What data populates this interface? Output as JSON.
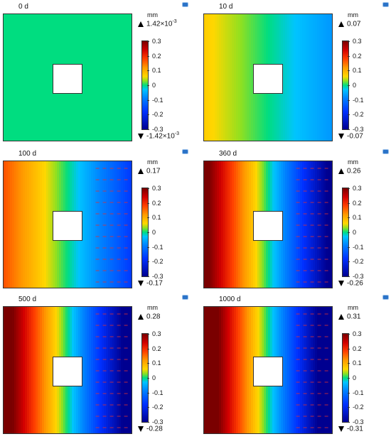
{
  "panels": [
    {
      "time": "0 d",
      "unit": "mm",
      "max": "1.42×10",
      "max_exp": "-3",
      "min": "-1.42×10",
      "min_exp": "-3",
      "ticks": [
        "0.3",
        "0.2",
        "0.1",
        "0",
        "-0.1",
        "-0.2",
        "-0.3"
      ],
      "field_level": 0.0
    },
    {
      "time": "10 d",
      "unit": "mm",
      "max": "0.07",
      "max_exp": "",
      "min": "-0.07",
      "min_exp": "",
      "ticks": [
        "0.3",
        "0.2",
        "0.1",
        "0",
        "-0.1",
        "-0.2",
        "-0.3"
      ],
      "field_level": 0.07
    },
    {
      "time": "100 d",
      "unit": "mm",
      "max": "0.17",
      "max_exp": "",
      "min": "-0.17",
      "min_exp": "",
      "ticks": [
        "0.3",
        "0.2",
        "0.1",
        "0",
        "-0.1",
        "-0.2",
        "-0.3"
      ],
      "field_level": 0.17
    },
    {
      "time": "360 d",
      "unit": "mm",
      "max": "0.26",
      "max_exp": "",
      "min": "-0.26",
      "min_exp": "",
      "ticks": [
        "0.3",
        "0.2",
        "0.1",
        "0",
        "-0.1",
        "-0.2",
        "-0.3"
      ],
      "field_level": 0.26
    },
    {
      "time": "500 d",
      "unit": "mm",
      "max": "0.28",
      "max_exp": "",
      "min": "-0.28",
      "min_exp": "",
      "ticks": [
        "0.3",
        "0.2",
        "0.1",
        "0",
        "-0.1",
        "-0.2",
        "-0.3"
      ],
      "field_level": 0.28
    },
    {
      "time": "1000 d",
      "unit": "mm",
      "max": "0.31",
      "max_exp": "",
      "min": "-0.31",
      "min_exp": "",
      "ticks": [
        "0.3",
        "0.2",
        "0.1",
        "0",
        "-0.1",
        "-0.2",
        "-0.3"
      ],
      "field_level": 0.31
    }
  ],
  "colorbar_range": [
    -0.3,
    0.3
  ]
}
